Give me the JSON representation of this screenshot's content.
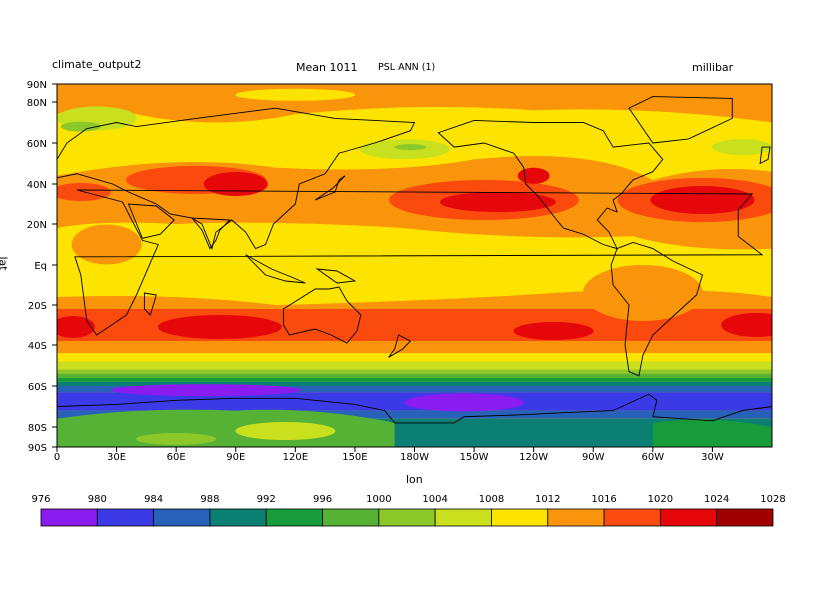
{
  "header": {
    "case_name": "climate_output2",
    "mean_label": "Mean 1011",
    "variable_label": "PSL ANN (1)",
    "units": "millibar"
  },
  "chart_data": {
    "type": "heatmap",
    "subtype": "filled-contour map",
    "xlabel": "lon",
    "ylabel": "lat",
    "x_ticks": [
      "0",
      "30E",
      "60E",
      "90E",
      "120E",
      "150E",
      "180W",
      "150W",
      "120W",
      "90W",
      "60W",
      "30W"
    ],
    "y_ticks": [
      "90N",
      "80N",
      "60N",
      "40N",
      "20N",
      "Eq",
      "20S",
      "40S",
      "60S",
      "80S",
      "90S"
    ],
    "colorbar": {
      "levels": [
        "976",
        "980",
        "984",
        "988",
        "992",
        "996",
        "1000",
        "1004",
        "1008",
        "1012",
        "1016",
        "1020",
        "1024",
        "1028"
      ],
      "colors": [
        "#8b1cf0",
        "#3a3ae6",
        "#2761b8",
        "#0b7f74",
        "#179c3c",
        "#55b234",
        "#8cc82a",
        "#c8e01e",
        "#fde400",
        "#f9940b",
        "#fb4a0e",
        "#e6070b",
        "#a00000"
      ]
    },
    "annotation_mean": 1011
  }
}
